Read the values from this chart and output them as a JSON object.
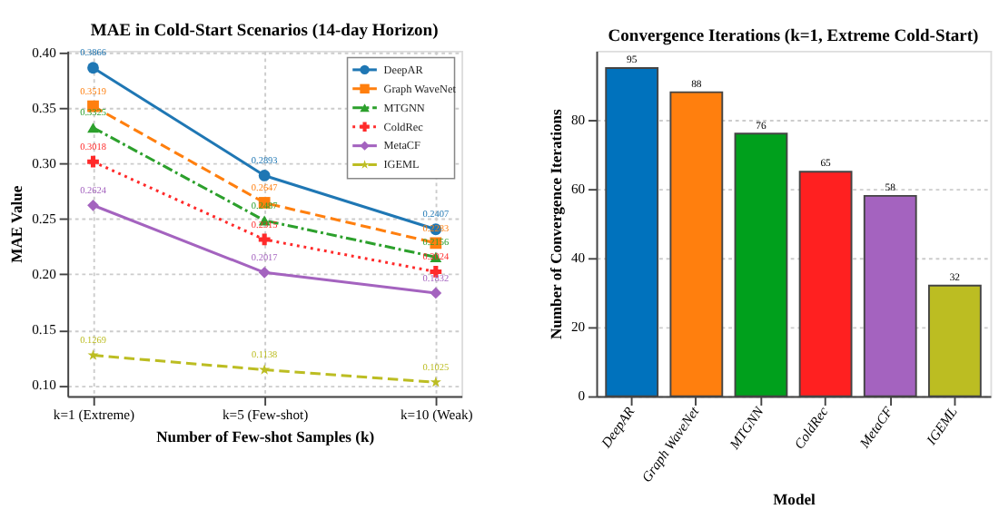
{
  "chart_data": [
    {
      "type": "line",
      "title": "MAE in Cold-Start Scenarios (14-day Horizon)",
      "xlabel": "Number of Few-shot Samples (k)",
      "ylabel": "MAE Value",
      "categories": [
        "k=1 (Extreme)",
        "k=5 (Few-shot)",
        "k=10 (Weak)"
      ],
      "series": [
        {
          "name": "DeepAR",
          "color": "#1f77b4",
          "values": [
            0.3866,
            0.2893,
            0.2407
          ],
          "marker": "circle",
          "line_style": "solid"
        },
        {
          "name": "Graph WaveNet",
          "color": "#ff7f0e",
          "values": [
            0.3519,
            0.2647,
            0.2283
          ],
          "marker": "square",
          "line_style": "dashed"
        },
        {
          "name": "MTGNN",
          "color": "#2ca02c",
          "values": [
            0.3325,
            0.2487,
            0.2156
          ],
          "marker": "triangle",
          "line_style": "dashdot"
        },
        {
          "name": "ColdRec",
          "color": "#ff2a2a",
          "values": [
            0.3018,
            0.2315,
            0.2024
          ],
          "marker": "cross",
          "line_style": "dotted"
        },
        {
          "name": "MetaCF",
          "color": "#a463bf",
          "values": [
            0.2624,
            0.2017,
            0.1832
          ],
          "marker": "diamond",
          "line_style": "solid"
        },
        {
          "name": "IGEML",
          "color": "#bcbd22",
          "values": [
            0.1269,
            0.1138,
            0.1025
          ],
          "marker": "star",
          "line_style": "dashed"
        }
      ],
      "ylim": [
        0.09,
        0.402
      ],
      "yticks": [
        {
          "value": 0.1,
          "label": "0.10"
        },
        0.15,
        {
          "value": 0.2,
          "label": "0.20"
        },
        0.25,
        {
          "value": 0.3,
          "label": "0.30"
        },
        0.35,
        {
          "value": 0.4,
          "label": "0.40"
        }
      ],
      "grid": true,
      "legend": "top right",
      "data_labels": true
    },
    {
      "type": "bar",
      "title": "Convergence Iterations (k=1, Extreme Cold-Start)",
      "xlabel": "Model",
      "ylabel": "Number of Convergence Iterations",
      "categories": [
        "DeepAR",
        "Graph WaveNet",
        "MTGNN",
        "ColdRec",
        "MetaCF",
        "IGEML"
      ],
      "values": [
        95,
        88,
        76,
        65,
        58,
        32
      ],
      "colors": [
        "#0072bd",
        "#ff7f0e",
        "#00a01c",
        "#ff2020",
        "#a463bf",
        "#bcbd22"
      ],
      "ylim": [
        0,
        100
      ],
      "yticks": [
        0,
        20,
        40,
        60,
        80
      ],
      "grid": "y",
      "data_labels": true
    }
  ]
}
